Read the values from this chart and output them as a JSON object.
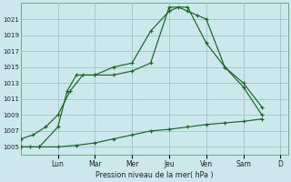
{
  "background_color": "#cce8ec",
  "grid_color": "#9cc4c8",
  "line_color": "#1a6328",
  "marker_color": "#1a6328",
  "xlabel": "Pression niveau de la mer( hPa )",
  "ylim": [
    1004,
    1023
  ],
  "yticks": [
    1005,
    1007,
    1009,
    1011,
    1013,
    1015,
    1017,
    1019,
    1021
  ],
  "day_labels": [
    "Lun",
    "Mar",
    "Mer",
    "Jeu",
    "Ven",
    "Sam",
    "D"
  ],
  "day_positions": [
    1.0,
    2.0,
    3.0,
    4.0,
    5.0,
    6.0,
    7.0
  ],
  "xlim": [
    0.0,
    7.2
  ],
  "series": [
    {
      "x": [
        0.0,
        0.33,
        0.67,
        1.0,
        1.33,
        1.67,
        2.0,
        2.5,
        3.0,
        3.5,
        4.0,
        4.25,
        4.5,
        4.75,
        5.0,
        5.5,
        6.0,
        6.5
      ],
      "y": [
        1006,
        1006.5,
        1007.5,
        1009,
        1012,
        1014,
        1014,
        1015,
        1015.5,
        1019.5,
        1022.0,
        1022.5,
        1022.0,
        1021.5,
        1021,
        1015,
        1012.5,
        1009
      ]
    },
    {
      "x": [
        0.0,
        0.25,
        0.5,
        1.0,
        1.25,
        1.5,
        2.0,
        2.5,
        3.0,
        3.5,
        4.0,
        4.5,
        5.0,
        5.5,
        6.0,
        6.5
      ],
      "y": [
        1005,
        1005,
        1005,
        1007.5,
        1012,
        1014,
        1014,
        1014,
        1014.5,
        1015.5,
        1022.5,
        1022.5,
        1018,
        1015,
        1013,
        1010
      ]
    },
    {
      "x": [
        0.0,
        0.5,
        1.0,
        1.5,
        2.0,
        2.5,
        3.0,
        3.5,
        4.0,
        4.5,
        5.0,
        5.5,
        6.0,
        6.5
      ],
      "y": [
        1005,
        1005,
        1005,
        1005.2,
        1005.5,
        1006,
        1006.5,
        1007,
        1007.2,
        1007.5,
        1007.8,
        1008,
        1008.2,
        1008.5
      ]
    }
  ]
}
